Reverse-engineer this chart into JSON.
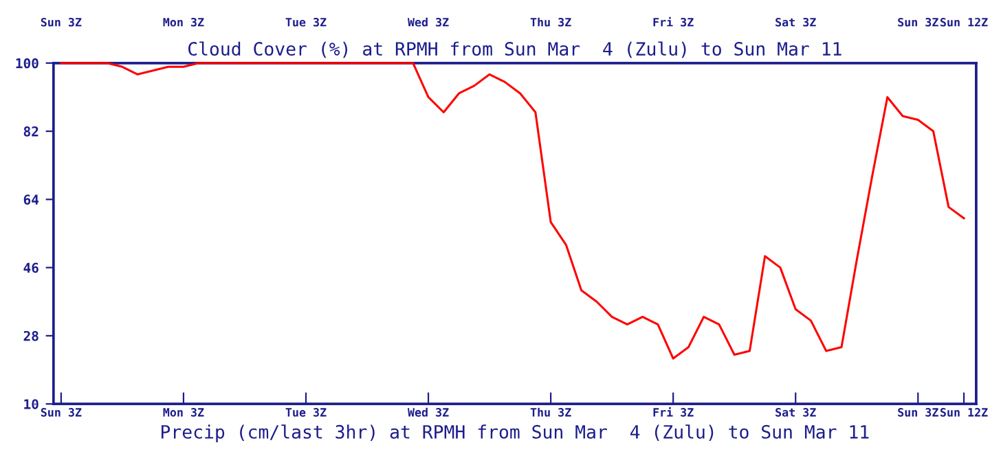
{
  "chart_data": {
    "type": "line",
    "title": "Cloud Cover (%) at RPMH from Sun Mar  4 (Zulu) to Sun Mar 11",
    "xlabel": "Precip (cm/last 3hr) at RPMH from Sun Mar  4 (Zulu) to Sun Mar 11",
    "categories": [
      "Sun 3Z",
      null,
      null,
      null,
      null,
      null,
      null,
      null,
      "Mon 3Z",
      null,
      null,
      null,
      null,
      null,
      null,
      null,
      "Tue 3Z",
      null,
      null,
      null,
      null,
      null,
      null,
      null,
      "Wed 3Z",
      null,
      null,
      null,
      null,
      null,
      null,
      null,
      "Thu 3Z",
      null,
      null,
      null,
      null,
      null,
      null,
      null,
      "Fri 3Z",
      null,
      null,
      null,
      null,
      null,
      null,
      null,
      "Sat 3Z",
      null,
      null,
      null,
      null,
      null,
      null,
      null,
      "Sun 3Z",
      null,
      null,
      "Sun 12Z"
    ],
    "series": [
      {
        "color": "#ff0000",
        "values": [
          100,
          100,
          100,
          100,
          99,
          97,
          98,
          99,
          99,
          100,
          100,
          100,
          100,
          100,
          100,
          100,
          100,
          100,
          100,
          100,
          100,
          100,
          100,
          100,
          91,
          87,
          92,
          94,
          97,
          95,
          92,
          87,
          58,
          52,
          40,
          37,
          33,
          31,
          33,
          31,
          22,
          25,
          33,
          31,
          23,
          24,
          49,
          46,
          35,
          32,
          24,
          25,
          48,
          70,
          91,
          86,
          85,
          82,
          62,
          59
        ]
      }
    ],
    "ylim": [
      10,
      100
    ],
    "yticks": [
      10,
      28,
      46,
      64,
      82,
      100
    ],
    "grid": false,
    "marker": "none",
    "line_style": "solid"
  }
}
